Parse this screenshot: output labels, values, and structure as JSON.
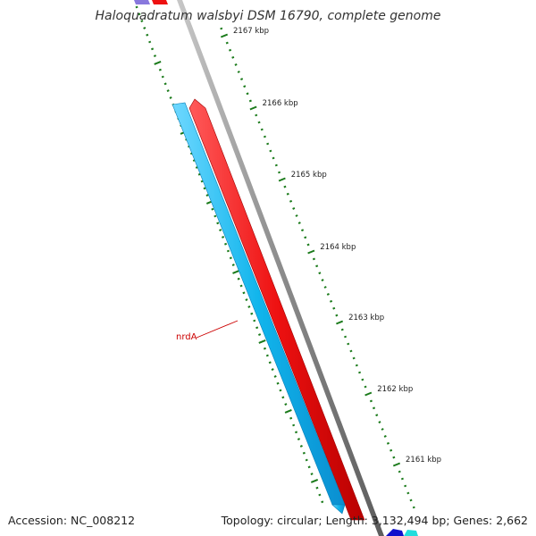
{
  "title": "Haloquadratum walsbyi DSM 16790, complete genome",
  "colors": {
    "tick": "#1a7a1a",
    "gene_reverse": "#11b5ec",
    "gene_forward": "#ee1111",
    "backbone": "#8c8c8c",
    "label": "#cc0000",
    "gene_purple": "#8878dd",
    "gene_darkblue": "#1010cc",
    "gene_cyan": "#22dddd"
  },
  "ruler": {
    "unit": "kbp",
    "ticks": [
      {
        "label": "2167 kbp",
        "value": 2167
      },
      {
        "label": "2166 kbp",
        "value": 2166
      },
      {
        "label": "2165 kbp",
        "value": 2165
      },
      {
        "label": "2164 kbp",
        "value": 2164
      },
      {
        "label": "2163 kbp",
        "value": 2163
      },
      {
        "label": "2162 kbp",
        "value": 2162
      },
      {
        "label": "2161 kbp",
        "value": 2161
      }
    ]
  },
  "genes": [
    {
      "label": "nrdA",
      "strand": "reverse"
    }
  ],
  "footer": {
    "accession": "Accession: NC_008212",
    "summary": "Topology: circular; Length: 3,132,494 bp; Genes: 2,662"
  }
}
